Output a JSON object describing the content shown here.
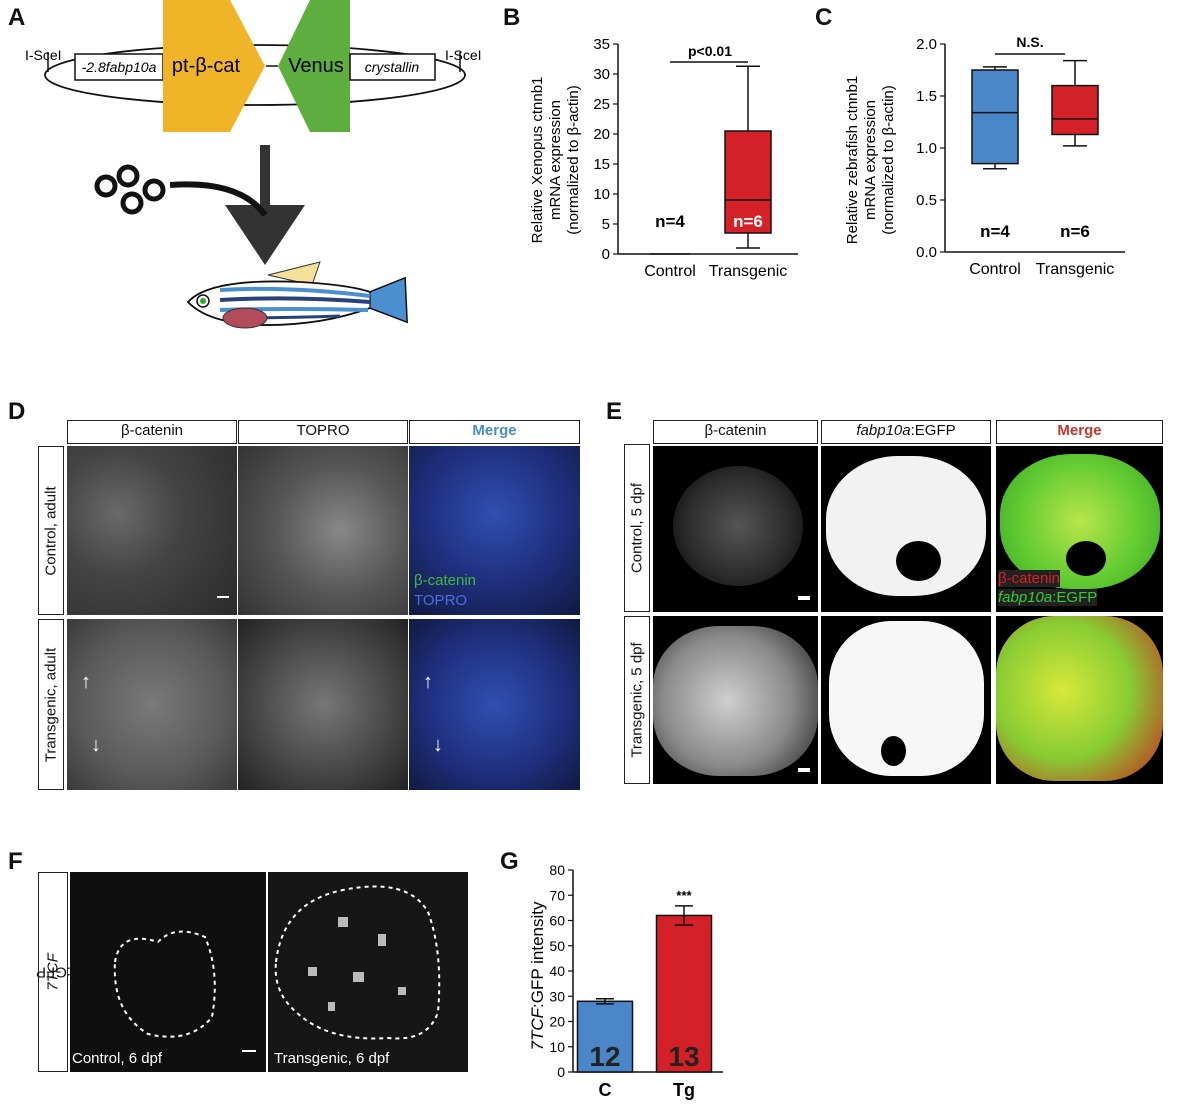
{
  "panels": {
    "A": {
      "letter": "A",
      "left_site": "I-SceI",
      "right_site": "I-SceI",
      "promoter": "-2.8fabp10a",
      "cassette1": "pt-β-cat",
      "cassette2": "Venus",
      "crystallin": "crystallin",
      "colors": {
        "cassette1": "#f0b429",
        "cassette2": "#5dae3e",
        "arrow": "#333333"
      },
      "icons": [
        "eggs-icon",
        "down-arrow-icon",
        "zebrafish-icon"
      ]
    },
    "B": {
      "letter": "B",
      "n_control": "n=4",
      "n_transgenic": "n=6",
      "significance": "p<0.01"
    },
    "C": {
      "letter": "C",
      "n_control": "n=4",
      "n_transgenic": "n=6",
      "significance": "N.S."
    },
    "D": {
      "letter": "D",
      "columns": [
        "β-catenin",
        "TOPRO",
        "Merge"
      ],
      "rows": [
        "Control, adult",
        "Transgenic, adult"
      ],
      "legend_bcat": "β-catenin",
      "legend_topro": "TOPRO",
      "colors": {
        "merge_title": "#4a8fb8",
        "bcat": "#3dbb3d",
        "topro": "#4a6fe0"
      }
    },
    "E": {
      "letter": "E",
      "columns": [
        "β-catenin",
        "fabp10a:EGFP",
        "Merge"
      ],
      "col2_italic": "fabp10a",
      "col2_rest": ":EGFP",
      "rows": [
        "Control, 5 dpf",
        "Transgenic, 5 dpf"
      ],
      "legend_bcat": "β-catenin",
      "legend_egfp_italic": "fabp10a",
      "legend_egfp_rest": ":EGFP",
      "colors": {
        "merge_title": "#c0392b",
        "bcat": "#e02020",
        "egfp": "#33cc33"
      }
    },
    "F": {
      "letter": "F",
      "row_label_italic": "7TCF",
      "row_label_rest": ":GFP",
      "left_caption": "Control, 6 dpf",
      "right_caption": "Transgenic, 6 dpf"
    },
    "G": {
      "letter": "G",
      "ylabel_italic": "7TCF",
      "ylabel_rest": ":GFP intensity",
      "significance": "***"
    }
  },
  "chart_data": [
    {
      "panel": "B",
      "type": "box",
      "categories": [
        "Control",
        "Transgenic"
      ],
      "ylabel": "Relative Xenopus ctnnb1 mRNA expression (normalized to β-actin)",
      "ylabel_lines": [
        "Relative Xenopus ctnnb1",
        "mRNA expression",
        "(normalized to β-actin)"
      ],
      "ylim": [
        0,
        35
      ],
      "yticks": [
        0,
        5,
        10,
        15,
        20,
        25,
        30,
        35
      ],
      "series": [
        {
          "category": "Control",
          "min": 0,
          "q1": 0,
          "median": 0,
          "q3": 0,
          "max": 0,
          "color": "#ffffff"
        },
        {
          "category": "Transgenic",
          "min": 1,
          "q1": 3.5,
          "median": 9,
          "q3": 20.5,
          "max": 31.3,
          "color": "#d42128"
        }
      ],
      "n_labels": [
        "n=4",
        "n=6"
      ],
      "annotation": "p<0.01"
    },
    {
      "panel": "C",
      "type": "box",
      "categories": [
        "Control",
        "Transgenic"
      ],
      "ylabel": "Relative zebrafish ctnnb1 mRNA expression (normalized to β-actin)",
      "ylabel_lines": [
        "Relative zebrafish ctnnb1",
        "mRNA expression",
        "(normalized to β-actin)"
      ],
      "ylim": [
        0,
        2.0
      ],
      "yticks": [
        0.0,
        0.5,
        1.0,
        1.5,
        2.0
      ],
      "series": [
        {
          "category": "Control",
          "min": 0.8,
          "q1": 0.85,
          "median": 1.34,
          "q3": 1.75,
          "max": 1.78,
          "color": "#4a86c8"
        },
        {
          "category": "Transgenic",
          "min": 1.02,
          "q1": 1.13,
          "median": 1.28,
          "q3": 1.6,
          "max": 1.84,
          "color": "#d42128"
        }
      ],
      "n_labels": [
        "n=4",
        "n=6"
      ],
      "annotation": "N.S."
    },
    {
      "panel": "G",
      "type": "bar",
      "categories": [
        "C",
        "Tg"
      ],
      "values": [
        28,
        62
      ],
      "errors": [
        1,
        3.8
      ],
      "bar_labels": [
        "12",
        "13"
      ],
      "colors": [
        "#4a86c8",
        "#d42128"
      ],
      "ylabel": "7TCF:GFP intensity",
      "ylim": [
        0,
        80
      ],
      "yticks": [
        0,
        10,
        20,
        30,
        40,
        50,
        60,
        70,
        80
      ],
      "annotation": "***"
    }
  ]
}
